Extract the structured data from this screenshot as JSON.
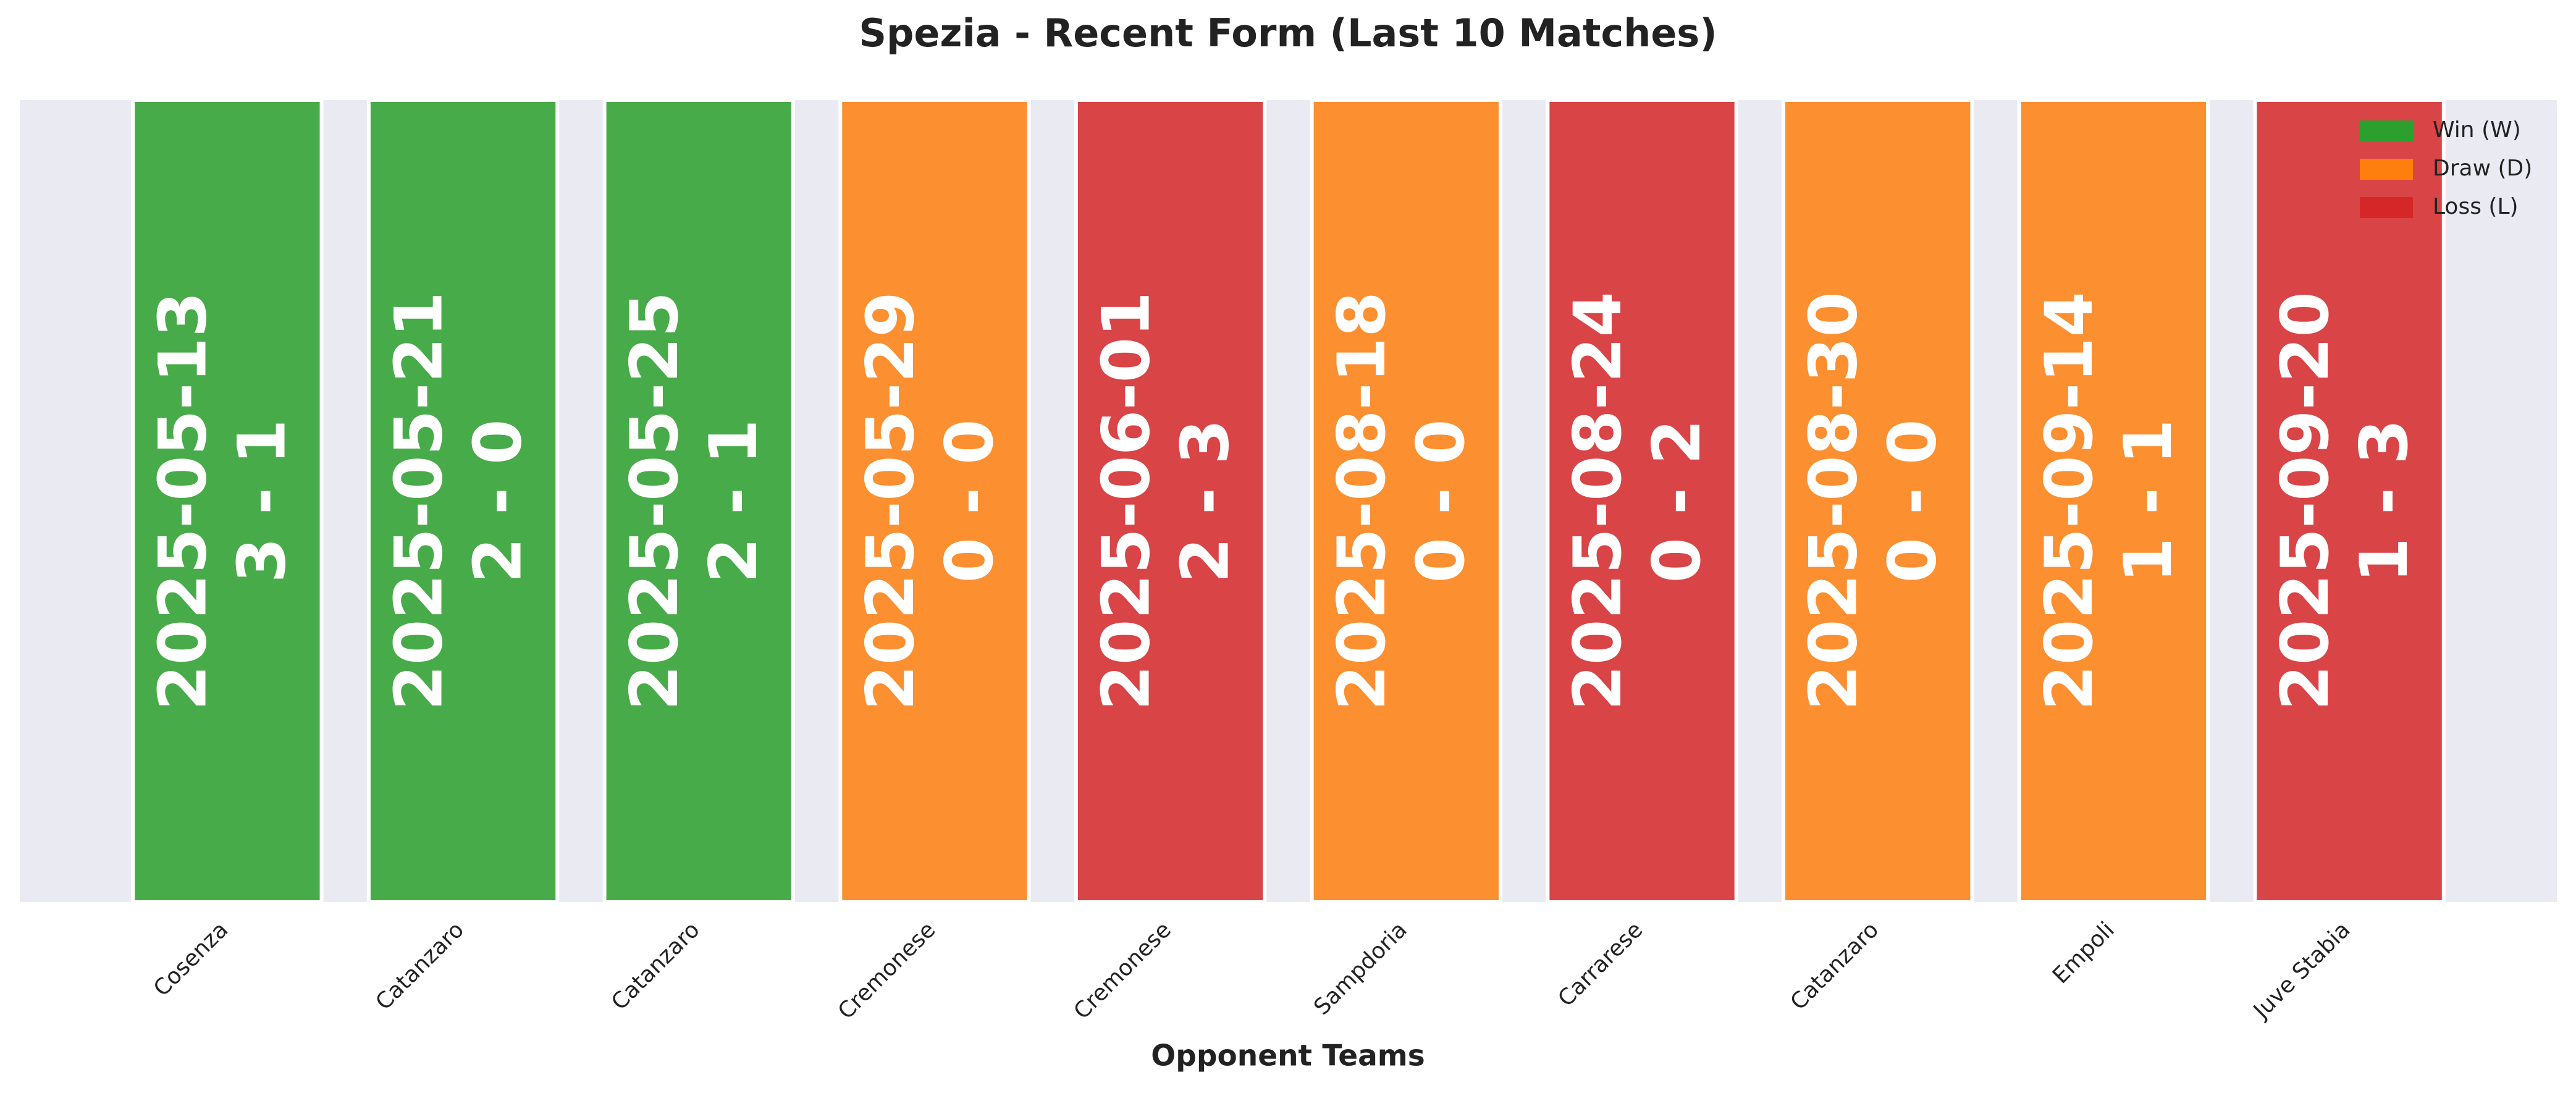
{
  "chart_data": {
    "type": "bar",
    "title": "Spezia - Recent Form (Last 10 Matches)",
    "x_label": "Opponent Teams",
    "categories": [
      "Cosenza",
      "Catanzaro",
      "Catanzaro",
      "Cremonese",
      "Cremonese",
      "Sampdoria",
      "Carrarese",
      "Catanzaro",
      "Empoli",
      "Juve Stabia"
    ],
    "dates": [
      "2025-05-13",
      "2025-05-21",
      "2025-05-25",
      "2025-05-29",
      "2025-06-01",
      "2025-08-18",
      "2025-08-24",
      "2025-08-30",
      "2025-09-14",
      "2025-09-20"
    ],
    "scores": [
      "3 - 1",
      "2 - 0",
      "2 - 1",
      "0 - 0",
      "2 - 3",
      "0 - 0",
      "0 - 2",
      "0 - 0",
      "1 - 1",
      "1 - 3"
    ],
    "series": [
      {
        "name": "Win (W)",
        "color": "#2ca02c",
        "values": [
          1,
          1,
          1,
          null,
          null,
          null,
          null,
          null,
          null,
          null
        ]
      },
      {
        "name": "Draw (D)",
        "color": "#ff7f0e",
        "values": [
          null,
          null,
          null,
          1,
          null,
          1,
          null,
          1,
          1,
          null
        ]
      },
      {
        "name": "Loss (L)",
        "color": "#d62728",
        "values": [
          null,
          null,
          null,
          null,
          1,
          null,
          1,
          null,
          null,
          1
        ]
      }
    ],
    "ylim": [
      0,
      1
    ],
    "legend": "upper right"
  }
}
